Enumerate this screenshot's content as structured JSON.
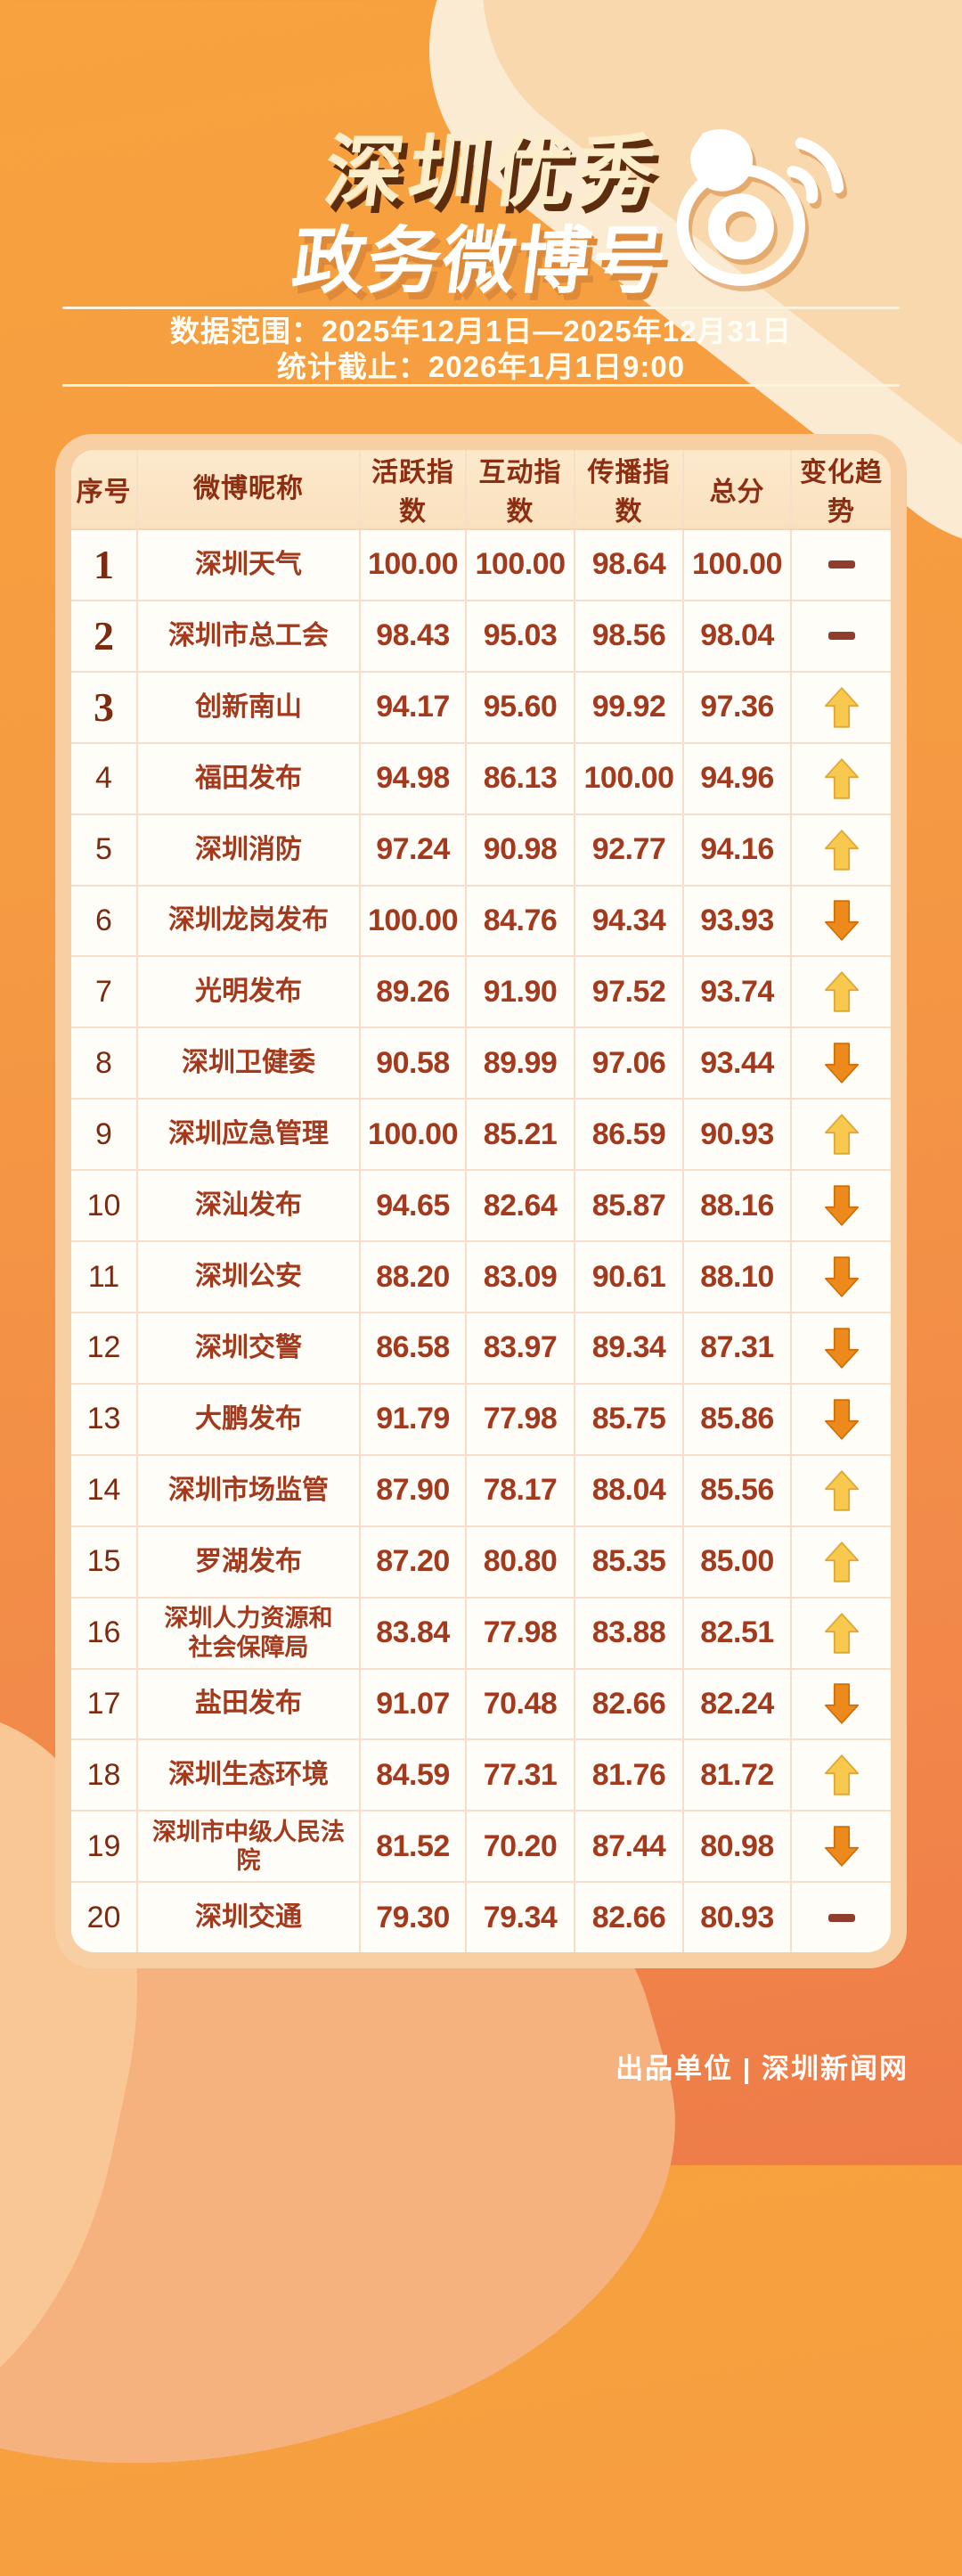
{
  "header": {
    "title_line1": "深圳优秀",
    "title_line2": "政务微博号"
  },
  "meta": {
    "data_range": "数据范围：2025年12月1日—2025年12月31日",
    "stats_deadline": "统计截止：2026年1月1日9:00"
  },
  "chart_data": {
    "type": "table",
    "title": "深圳优秀政务微博号",
    "columns": [
      "序号",
      "微博昵称",
      "活跃指数",
      "互动指数",
      "传播指数",
      "总分",
      "变化趋势"
    ],
    "rows": [
      {
        "rank": "1",
        "name": "深圳天气",
        "activity": "100.00",
        "interaction": "100.00",
        "spread": "98.64",
        "total": "100.00",
        "trend": "flat"
      },
      {
        "rank": "2",
        "name": "深圳市总工会",
        "activity": "98.43",
        "interaction": "95.03",
        "spread": "98.56",
        "total": "98.04",
        "trend": "flat"
      },
      {
        "rank": "3",
        "name": "创新南山",
        "activity": "94.17",
        "interaction": "95.60",
        "spread": "99.92",
        "total": "97.36",
        "trend": "up"
      },
      {
        "rank": "4",
        "name": "福田发布",
        "activity": "94.98",
        "interaction": "86.13",
        "spread": "100.00",
        "total": "94.96",
        "trend": "up"
      },
      {
        "rank": "5",
        "name": "深圳消防",
        "activity": "97.24",
        "interaction": "90.98",
        "spread": "92.77",
        "total": "94.16",
        "trend": "up"
      },
      {
        "rank": "6",
        "name": "深圳龙岗发布",
        "activity": "100.00",
        "interaction": "84.76",
        "spread": "94.34",
        "total": "93.93",
        "trend": "down"
      },
      {
        "rank": "7",
        "name": "光明发布",
        "activity": "89.26",
        "interaction": "91.90",
        "spread": "97.52",
        "total": "93.74",
        "trend": "up"
      },
      {
        "rank": "8",
        "name": "深圳卫健委",
        "activity": "90.58",
        "interaction": "89.99",
        "spread": "97.06",
        "total": "93.44",
        "trend": "down"
      },
      {
        "rank": "9",
        "name": "深圳应急管理",
        "activity": "100.00",
        "interaction": "85.21",
        "spread": "86.59",
        "total": "90.93",
        "trend": "up"
      },
      {
        "rank": "10",
        "name": "深汕发布",
        "activity": "94.65",
        "interaction": "82.64",
        "spread": "85.87",
        "total": "88.16",
        "trend": "down"
      },
      {
        "rank": "11",
        "name": "深圳公安",
        "activity": "88.20",
        "interaction": "83.09",
        "spread": "90.61",
        "total": "88.10",
        "trend": "down"
      },
      {
        "rank": "12",
        "name": "深圳交警",
        "activity": "86.58",
        "interaction": "83.97",
        "spread": "89.34",
        "total": "87.31",
        "trend": "down"
      },
      {
        "rank": "13",
        "name": "大鹏发布",
        "activity": "91.79",
        "interaction": "77.98",
        "spread": "85.75",
        "total": "85.86",
        "trend": "down"
      },
      {
        "rank": "14",
        "name": "深圳市场监管",
        "activity": "87.90",
        "interaction": "78.17",
        "spread": "88.04",
        "total": "85.56",
        "trend": "up"
      },
      {
        "rank": "15",
        "name": "罗湖发布",
        "activity": "87.20",
        "interaction": "80.80",
        "spread": "85.35",
        "total": "85.00",
        "trend": "up"
      },
      {
        "rank": "16",
        "name": "深圳人力资源和\n社会保障局",
        "activity": "83.84",
        "interaction": "77.98",
        "spread": "83.88",
        "total": "82.51",
        "trend": "up"
      },
      {
        "rank": "17",
        "name": "盐田发布",
        "activity": "91.07",
        "interaction": "70.48",
        "spread": "82.66",
        "total": "82.24",
        "trend": "down"
      },
      {
        "rank": "18",
        "name": "深圳生态环境",
        "activity": "84.59",
        "interaction": "77.31",
        "spread": "81.76",
        "total": "81.72",
        "trend": "up"
      },
      {
        "rank": "19",
        "name": "深圳市中级人民法院",
        "activity": "81.52",
        "interaction": "70.20",
        "spread": "87.44",
        "total": "80.98",
        "trend": "down"
      },
      {
        "rank": "20",
        "name": "深圳交通",
        "activity": "79.30",
        "interaction": "79.34",
        "spread": "82.66",
        "total": "80.93",
        "trend": "flat"
      }
    ]
  },
  "footer": {
    "credit": "出品单位 | 深圳新闻网"
  },
  "icons": {
    "logo": "weibo-logo",
    "up": "up-arrow-icon",
    "down": "down-arrow-icon",
    "flat": "dash-icon"
  },
  "colors": {
    "background_top": "#F7A23E",
    "background_bottom": "#EE7C49",
    "card_border": "#F8CFA2",
    "card_background": "#FFFDF8",
    "header_text": "#8C2E12",
    "value_text": "#A33A1D",
    "title_cream": "#FCEECB",
    "title_shadow": "#5E2D0E",
    "up_arrow": "#F7C94E",
    "down_arrow": "#EC8B1C",
    "dash": "#8F3D2C"
  }
}
